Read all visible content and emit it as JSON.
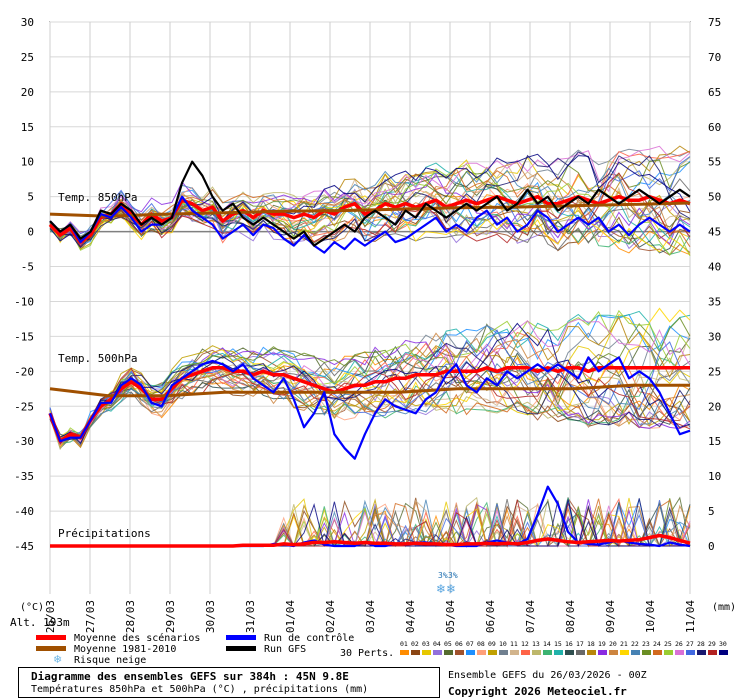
{
  "chart_data": {
    "type": "line",
    "title": "Diagramme des ensembles GEFS sur 384h : 45N 9.8E",
    "subtitle": "Températures 850hPa et 500hPa (°C) , précipitations (mm)",
    "left_axis": {
      "label": "(°C)",
      "ticks": [
        30,
        25,
        20,
        15,
        10,
        5,
        0,
        -5,
        -10,
        -15,
        -20,
        -25,
        -30,
        -35,
        -40,
        -45
      ],
      "range": [
        -45,
        30
      ]
    },
    "right_axis": {
      "label": "(mm)",
      "ticks": [
        75,
        70,
        65,
        60,
        55,
        50,
        45,
        40,
        35,
        30,
        25,
        20,
        15,
        10,
        5,
        0
      ],
      "range": [
        0,
        75
      ]
    },
    "x_ticks": [
      "26/03",
      "27/03",
      "28/03",
      "29/03",
      "30/03",
      "31/03",
      "01/04",
      "02/04",
      "03/04",
      "04/04",
      "05/04",
      "06/04",
      "07/04",
      "08/04",
      "09/04",
      "10/04",
      "11/04"
    ],
    "altitude": "Alt. 193m",
    "panel_labels": {
      "t850": "Temp. 850hPa",
      "t500": "Temp. 500hPa",
      "precip": "Précipitations"
    },
    "snow_marker": {
      "label_a": "3%",
      "label_b": "3%",
      "date": "05/04"
    },
    "series": [
      {
        "name": "Moyenne des scénarios",
        "color": "#ff0000",
        "panel": "t850",
        "values": [
          1,
          -0.5,
          0.5,
          -1.5,
          -0.5,
          2,
          2.5,
          4,
          2.5,
          1,
          2.5,
          1.5,
          2,
          4.5,
          4,
          3,
          3.5,
          1.5,
          2.5,
          3,
          2,
          3,
          2.5,
          2.5,
          2,
          2.5,
          2,
          3,
          2.5,
          3.5,
          4,
          2.5,
          3,
          4,
          3.5,
          4,
          3.5,
          4,
          4.5,
          3.5,
          4,
          4.5,
          4,
          4.5,
          5,
          4.5,
          4,
          4.5,
          5,
          4,
          4,
          4.5,
          5,
          4.5,
          4,
          4.5,
          5,
          4.5,
          4.5,
          5,
          4.5,
          4,
          4.5,
          4
        ]
      },
      {
        "name": "Moyenne 1981-2010",
        "color": "#a05000",
        "panel": "t850",
        "values": [
          2.5,
          2.2,
          2.5,
          2.7,
          2.9,
          3.0,
          3.2,
          3.4,
          3.5,
          3.7,
          3.9,
          4.1
        ]
      },
      {
        "name": "Run de contrôle",
        "color": "#0000ff",
        "panel": "t850",
        "values": [
          1.5,
          0,
          1,
          -1.5,
          0,
          2.5,
          2,
          3.5,
          2,
          0,
          1,
          1,
          2,
          5,
          3,
          2,
          1,
          -1,
          0,
          1,
          -0.5,
          1,
          0.5,
          -1,
          -2,
          -0.5,
          -2,
          -3,
          -1.5,
          -2.5,
          -1,
          -2,
          -1,
          0,
          -1.5,
          -1,
          0,
          1,
          2,
          0,
          1,
          0,
          2,
          3,
          1,
          2,
          0,
          1,
          3,
          2,
          0,
          1,
          2,
          1,
          2,
          0,
          1,
          -0.5,
          1,
          2,
          1,
          0,
          1,
          0
        ]
      },
      {
        "name": "Run GFS",
        "color": "#000000",
        "panel": "t850",
        "values": [
          1.5,
          0,
          1,
          -1,
          0,
          3,
          2.5,
          4,
          3,
          1,
          2,
          1,
          2,
          7,
          10,
          8,
          5,
          3,
          4,
          2,
          1,
          2,
          1,
          0,
          -1,
          0,
          -2,
          -1,
          0,
          1,
          0,
          2,
          3,
          2,
          1,
          3,
          2,
          4,
          3,
          2,
          3,
          4,
          3,
          4,
          5,
          3,
          4,
          6,
          4,
          5,
          3,
          4,
          5,
          4,
          6,
          5,
          4,
          5,
          6,
          5,
          4,
          5,
          6,
          5
        ]
      },
      {
        "name": "Moyenne des scénarios",
        "color": "#ff0000",
        "panel": "t500",
        "values": [
          -26,
          -30,
          -29,
          -29.5,
          -27,
          -25,
          -24,
          -22.5,
          -21.5,
          -22.5,
          -24,
          -24,
          -22.5,
          -21,
          -20.5,
          -20,
          -19.5,
          -19.5,
          -20,
          -20,
          -20.5,
          -20,
          -20.5,
          -20.5,
          -21,
          -21.5,
          -22,
          -22.5,
          -23,
          -22.5,
          -22,
          -22,
          -21.5,
          -21.5,
          -21,
          -21,
          -20.5,
          -20.5,
          -20.5,
          -20,
          -20,
          -20,
          -20,
          -19.5,
          -20,
          -19.5,
          -19.5,
          -19.5,
          -20,
          -19.5,
          -20,
          -19.5,
          -19.5,
          -20,
          -19.5,
          -19.5,
          -19.5,
          -19.5,
          -19.5,
          -19.5,
          -19.5,
          -19.5,
          -19.5,
          -19.5
        ]
      },
      {
        "name": "Moyenne 1981-2010",
        "color": "#a05000",
        "panel": "t500",
        "values": [
          -22.5,
          -23.5,
          -23.5,
          -23,
          -23,
          -23,
          -23,
          -22.5,
          -22.5,
          -22.5,
          -22,
          -22
        ]
      },
      {
        "name": "Run de contrôle",
        "color": "#0000ff",
        "panel": "t500",
        "values": [
          -26,
          -30,
          -29.5,
          -29.5,
          -27,
          -24.5,
          -24.5,
          -22,
          -21,
          -22,
          -24.5,
          -25,
          -22,
          -21,
          -20,
          -19,
          -18.5,
          -19,
          -20,
          -19,
          -21,
          -22,
          -23,
          -21,
          -24,
          -28,
          -26,
          -23,
          -29,
          -31,
          -32.5,
          -29,
          -26,
          -24,
          -25,
          -25.5,
          -26,
          -24,
          -23,
          -20.5,
          -19,
          -22,
          -23,
          -21,
          -22,
          -20,
          -21,
          -20,
          -19,
          -20,
          -19,
          -20,
          -21,
          -18,
          -20,
          -19,
          -18,
          -21,
          -20,
          -21,
          -23,
          -26,
          -29,
          -28.5
        ]
      },
      {
        "name": "Run de contrôle",
        "color": "#0000ff",
        "panel": "precip",
        "values": [
          0,
          0,
          0,
          0,
          0,
          0,
          0,
          0,
          0,
          0,
          0,
          0,
          0,
          0,
          0,
          0,
          0,
          0,
          0,
          0,
          0,
          0,
          0.3,
          0.2,
          0,
          0.5,
          0.8,
          0.2,
          0,
          0,
          0,
          0.5,
          0,
          0,
          0.3,
          0.2,
          0.5,
          0.5,
          0.3,
          0.2,
          0,
          0,
          0,
          0.5,
          0.8,
          0.5,
          0.3,
          1,
          4.5,
          8.5,
          6,
          2,
          0.5,
          0.3,
          0.2,
          0.5,
          0.8,
          0.5,
          0.3,
          0.2,
          0,
          0.5,
          0.2,
          0
        ]
      },
      {
        "name": "Moyenne des scénarios",
        "color": "#ff0000",
        "panel": "precip",
        "values": [
          0,
          0,
          0,
          0,
          0,
          0,
          0,
          0,
          0,
          0,
          0,
          0,
          0,
          0,
          0,
          0,
          0,
          0,
          0,
          0.1,
          0.1,
          0.1,
          0.1,
          0.3,
          0.2,
          0.3,
          0.5,
          0.5,
          0.6,
          0.5,
          0.4,
          0.5,
          0.4,
          0.4,
          0.3,
          0.3,
          0.4,
          0.3,
          0.3,
          0.2,
          0.2,
          0.3,
          0.3,
          0.4,
          0.3,
          0.4,
          0.3,
          0.5,
          0.8,
          1,
          0.8,
          0.6,
          0.5,
          0.6,
          0.7,
          0.8,
          0.7,
          0.8,
          0.9,
          1.2,
          1.5,
          1.2,
          0.8,
          0.4
        ]
      }
    ],
    "legend": [
      {
        "label": "Moyenne des scénarios",
        "color": "#ff0000"
      },
      {
        "label": "Moyenne 1981-2010",
        "color": "#a05000"
      },
      {
        "label": "Risque neige",
        "color": "#6fb7e6",
        "icon": "snowflake-icon"
      },
      {
        "label": "Run de contrôle",
        "color": "#0000ff"
      },
      {
        "label": "Run GFS",
        "color": "#000000"
      }
    ],
    "perturbations_label": "30 Perts.",
    "perturbations": [
      {
        "id": "01",
        "color": "#ff8c00"
      },
      {
        "id": "02",
        "color": "#8b4513"
      },
      {
        "id": "03",
        "color": "#e6c800"
      },
      {
        "id": "04",
        "color": "#9370db"
      },
      {
        "id": "05",
        "color": "#556b2f"
      },
      {
        "id": "06",
        "color": "#a0522d"
      },
      {
        "id": "07",
        "color": "#1e90ff"
      },
      {
        "id": "08",
        "color": "#ffa07a"
      },
      {
        "id": "09",
        "color": "#c0a000"
      },
      {
        "id": "10",
        "color": "#708090"
      },
      {
        "id": "11",
        "color": "#d2b48c"
      },
      {
        "id": "12",
        "color": "#ff6347"
      },
      {
        "id": "13",
        "color": "#bdb76b"
      },
      {
        "id": "14",
        "color": "#3cb371"
      },
      {
        "id": "15",
        "color": "#20b2aa"
      },
      {
        "id": "16",
        "color": "#2f4f4f"
      },
      {
        "id": "17",
        "color": "#696969"
      },
      {
        "id": "18",
        "color": "#b8860b"
      },
      {
        "id": "19",
        "color": "#8a2be2"
      },
      {
        "id": "20",
        "color": "#cd853f"
      },
      {
        "id": "21",
        "color": "#ffd700"
      },
      {
        "id": "22",
        "color": "#4682b4"
      },
      {
        "id": "23",
        "color": "#6b8e23"
      },
      {
        "id": "24",
        "color": "#d2691e"
      },
      {
        "id": "25",
        "color": "#9acd32"
      },
      {
        "id": "26",
        "color": "#da70d6"
      },
      {
        "id": "27",
        "color": "#4169e1"
      },
      {
        "id": "28",
        "color": "#191970"
      },
      {
        "id": "29",
        "color": "#b22222"
      },
      {
        "id": "30",
        "color": "#000080"
      }
    ],
    "grid": true
  },
  "footer": {
    "title": "Diagramme des ensembles GEFS sur 384h : 45N 9.8E",
    "subtitle": "Températures 850hPa et 500hPa (°C) , précipitations (mm)",
    "run": "Ensemble GEFS du 26/03/2026 - 00Z",
    "copyright": "Copyright 2026 Meteociel.fr"
  }
}
